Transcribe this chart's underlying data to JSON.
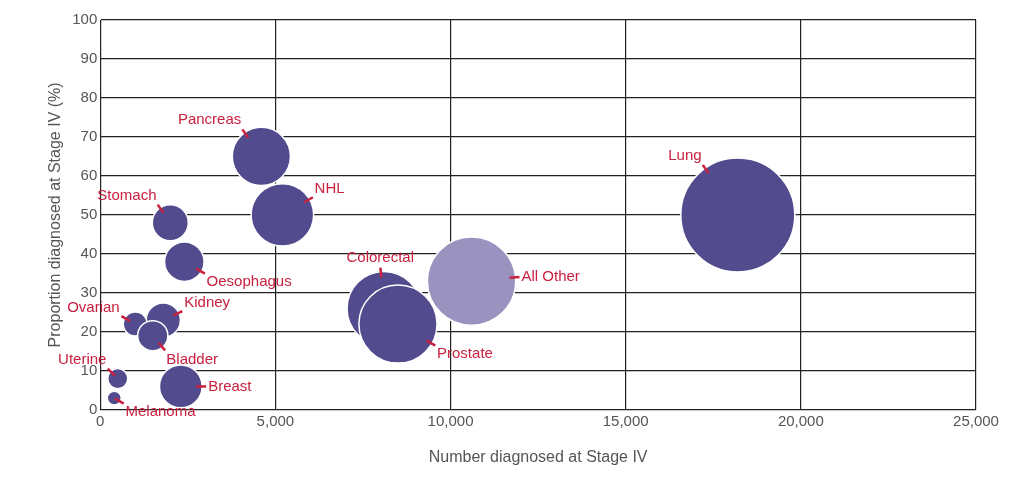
{
  "chart_data": {
    "type": "bubble",
    "xlabel": "Number diagnosed at Stage IV",
    "ylabel": "Proportion diagnosed at Stage IV (%)",
    "xlim": [
      0,
      25000
    ],
    "ylim": [
      0,
      100
    ],
    "xticks": [
      0,
      {
        "value": 5000,
        "label": "5,000"
      },
      {
        "value": 10000,
        "label": "10,000"
      },
      {
        "value": 15000,
        "label": "15,000"
      },
      {
        "value": 20000,
        "label": "20,000"
      },
      {
        "value": 25000,
        "label": "25,000"
      }
    ],
    "yticks": [
      0,
      10,
      20,
      30,
      40,
      50,
      60,
      70,
      80,
      90,
      100
    ],
    "grid": true,
    "series": [
      {
        "name": "Lung",
        "color": "#524b8e",
        "x": [
          18200
        ],
        "values": [
          50
        ],
        "sizes": [
          1
        ]
      },
      {
        "name": "All Other",
        "color": "#9a93c0",
        "x": [
          10600
        ],
        "values": [
          33
        ],
        "sizes": [
          0.6
        ]
      },
      {
        "name": "Colorectal",
        "color": "#524b8e",
        "x": [
          8100
        ],
        "values": [
          26
        ],
        "sizes": [
          0.42
        ]
      },
      {
        "name": "Prostate",
        "color": "#524b8e",
        "x": [
          8500
        ],
        "values": [
          22
        ],
        "sizes": [
          0.47
        ]
      },
      {
        "name": "Pancreas",
        "color": "#524b8e",
        "x": [
          4600
        ],
        "values": [
          65
        ],
        "sizes": [
          0.26
        ]
      },
      {
        "name": "NHL",
        "color": "#524b8e",
        "x": [
          5200
        ],
        "values": [
          50
        ],
        "sizes": [
          0.3
        ]
      },
      {
        "name": "Stomach",
        "color": "#524b8e",
        "x": [
          2000
        ],
        "values": [
          48
        ],
        "sizes": [
          0.1
        ]
      },
      {
        "name": "Oesophagus",
        "color": "#524b8e",
        "x": [
          2400
        ],
        "values": [
          38
        ],
        "sizes": [
          0.12
        ]
      },
      {
        "name": "Kidney",
        "color": "#524b8e",
        "x": [
          1800
        ],
        "values": [
          23
        ],
        "sizes": [
          0.09
        ]
      },
      {
        "name": "Ovarian",
        "color": "#524b8e",
        "x": [
          1000
        ],
        "values": [
          22
        ],
        "sizes": [
          0.044
        ]
      },
      {
        "name": "Bladder",
        "color": "#524b8e",
        "x": [
          1500
        ],
        "values": [
          19
        ],
        "sizes": [
          0.07
        ]
      },
      {
        "name": "Uterine",
        "color": "#524b8e",
        "x": [
          500
        ],
        "values": [
          8
        ],
        "sizes": [
          0.031
        ]
      },
      {
        "name": "Melanoma",
        "color": "#524b8e",
        "x": [
          400
        ],
        "values": [
          3
        ],
        "sizes": [
          0.015
        ]
      },
      {
        "name": "Breast",
        "color": "#524b8e",
        "x": [
          2300
        ],
        "values": [
          6
        ],
        "sizes": [
          0.14
        ]
      }
    ]
  }
}
